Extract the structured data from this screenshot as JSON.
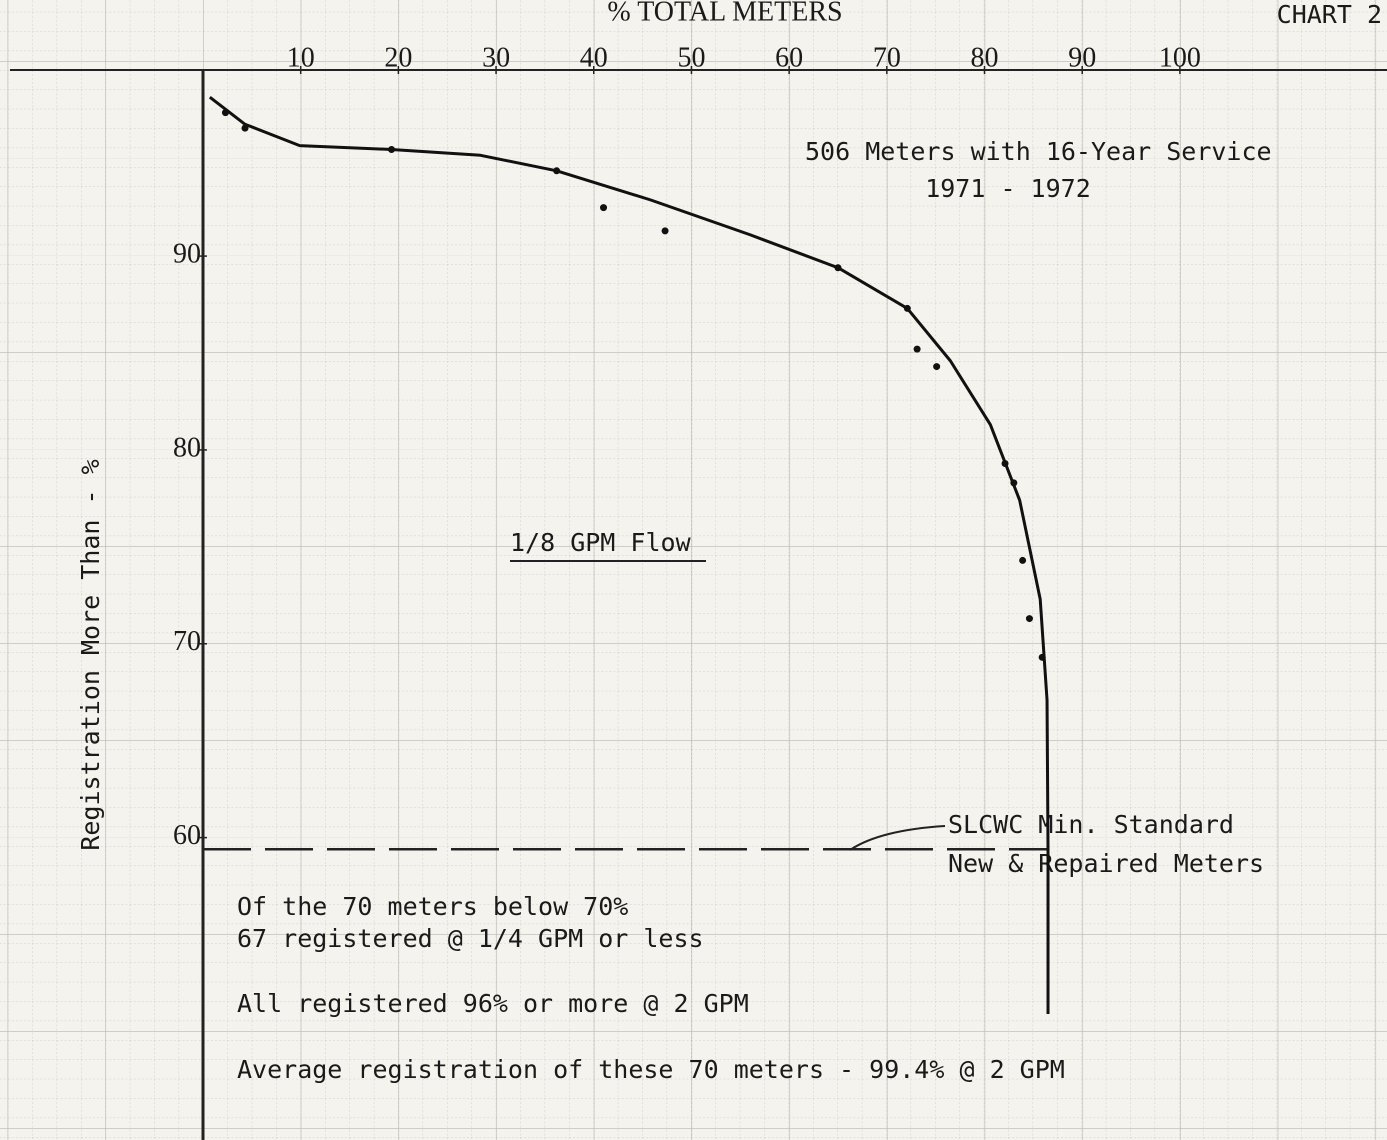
{
  "chart_data": {
    "type": "scatter",
    "title": "% TOTAL METERS",
    "chart_label": "CHART 2",
    "ylabel": "Registration More Than - %",
    "annotations": [
      "506 Meters with 16-Year Service",
      "1971 - 1972",
      "1/8 GPM Flow"
    ],
    "notes": [
      "Of the 70 meters below 70%",
      "67 registered @ 1/4 GPM or less",
      "All registered 96% or more @ 2 GPM",
      "Average registration of these 70 meters - 99.4% @ 2 GPM"
    ],
    "points": {
      "x": [
        2.3,
        4.3,
        19.3,
        36.2,
        41.0,
        47.3,
        65.0,
        72.1,
        73.1,
        75.1,
        82.1,
        83.0,
        83.9,
        84.6,
        85.9
      ],
      "y": [
        97.4,
        96.6,
        95.5,
        94.4,
        92.5,
        91.3,
        89.4,
        87.3,
        85.2,
        84.3,
        79.3,
        78.3,
        74.3,
        71.3,
        69.3
      ]
    },
    "curve": {
      "x": [
        0.7,
        4.3,
        9.9,
        19.3,
        28.4,
        36.2,
        45.8,
        56.0,
        65.0,
        72.1,
        76.5,
        80.6,
        83.6,
        85.7,
        86.4,
        86.5,
        86.5
      ],
      "y": [
        98.2,
        96.8,
        95.7,
        95.5,
        95.2,
        94.4,
        92.9,
        91.1,
        89.4,
        87.3,
        84.6,
        81.3,
        77.4,
        72.3,
        67.1,
        59.4,
        50.9
      ]
    },
    "reference_line": {
      "y": 59.4,
      "labels": [
        "SLCWC Min. Standard",
        "New & Repaired Meters"
      ]
    },
    "color": "#111111",
    "xlim": [
      0,
      121.2
    ],
    "xticks": [
      10,
      20,
      30,
      40,
      50,
      60,
      70,
      80,
      90,
      100
    ],
    "ylim": [
      44.4,
      99.6
    ],
    "yticks": [
      60,
      70,
      80,
      90
    ]
  }
}
